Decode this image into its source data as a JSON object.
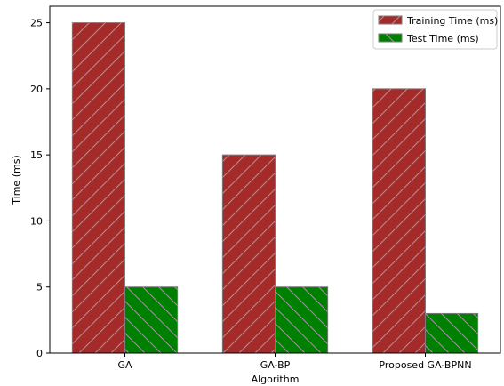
{
  "chart_data": {
    "type": "bar",
    "title": "",
    "xlabel": "Algorithm",
    "ylabel": "Time (ms)",
    "categories": [
      "GA",
      "GA-BP",
      "Proposed GA-BPNN"
    ],
    "series": [
      {
        "name": "Training Time (ms)",
        "values": [
          25,
          15,
          20
        ],
        "color": "#a52a2a",
        "hatch": "/"
      },
      {
        "name": "Test Time (ms)",
        "values": [
          5,
          5,
          3
        ],
        "color": "#008000",
        "hatch": "\\"
      }
    ],
    "ylim": [
      0,
      26.25
    ],
    "yticks": [
      0,
      5,
      10,
      15,
      20,
      25
    ],
    "grid": false,
    "legend_position": "top-right"
  }
}
